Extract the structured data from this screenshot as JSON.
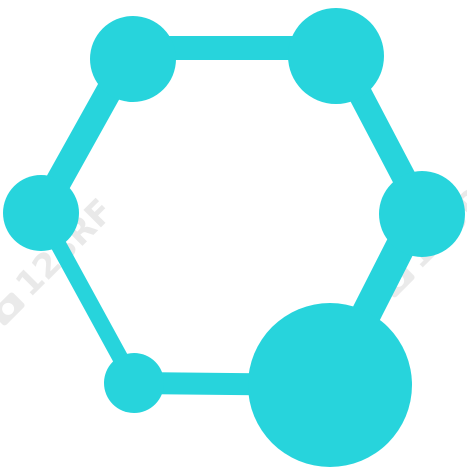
{
  "logo": {
    "name": "hexagonal-molecule-network-logo",
    "color": "#27d4dc"
  },
  "watermark": {
    "text": "123RF",
    "color": "#e6e6e6"
  }
}
